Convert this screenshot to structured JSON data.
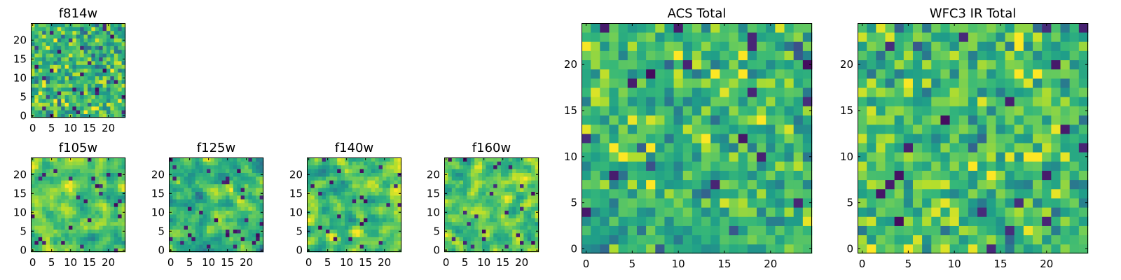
{
  "figure": {
    "colormap": "viridis",
    "cmap_low": "#440154",
    "cmap_high": "#fde725"
  },
  "chart_data": [
    {
      "type": "heatmap",
      "title": "f814w",
      "size": 25,
      "xticks": [
        "0",
        "5",
        "10",
        "15",
        "20"
      ],
      "yticks": [
        "0",
        "5",
        "10",
        "15",
        "20"
      ],
      "xlim": [
        0,
        24
      ],
      "ylim": [
        0,
        24
      ],
      "grid": false,
      "seed": 17,
      "smooth": 0,
      "mean": 0.66,
      "spread": 0.15
    },
    {
      "type": "heatmap",
      "title": "f105w",
      "size": 25,
      "xticks": [
        "0",
        "5",
        "10",
        "15",
        "20"
      ],
      "yticks": [
        "0",
        "5",
        "10",
        "15",
        "20"
      ],
      "xlim": [
        0,
        24
      ],
      "ylim": [
        0,
        24
      ],
      "grid": false,
      "seed": 41,
      "smooth": 1,
      "mean": 0.74,
      "spread": 0.15
    },
    {
      "type": "heatmap",
      "title": "f125w",
      "size": 25,
      "xticks": [
        "0",
        "5",
        "10",
        "15",
        "20"
      ],
      "yticks": [
        "0",
        "5",
        "10",
        "15",
        "20"
      ],
      "xlim": [
        0,
        24
      ],
      "ylim": [
        0,
        24
      ],
      "grid": false,
      "seed": 73,
      "smooth": 1,
      "mean": 0.68,
      "spread": 0.16
    },
    {
      "type": "heatmap",
      "title": "f140w",
      "size": 25,
      "xticks": [
        "0",
        "5",
        "10",
        "15",
        "20"
      ],
      "yticks": [
        "0",
        "5",
        "10",
        "15",
        "20"
      ],
      "xlim": [
        0,
        24
      ],
      "ylim": [
        0,
        24
      ],
      "grid": false,
      "seed": 99,
      "smooth": 1,
      "mean": 0.72,
      "spread": 0.15
    },
    {
      "type": "heatmap",
      "title": "f160w",
      "size": 25,
      "xticks": [
        "0",
        "5",
        "10",
        "15",
        "20"
      ],
      "yticks": [
        "0",
        "5",
        "10",
        "15",
        "20"
      ],
      "xlim": [
        0,
        24
      ],
      "ylim": [
        0,
        24
      ],
      "grid": false,
      "seed": 131,
      "smooth": 1,
      "mean": 0.72,
      "spread": 0.15
    },
    {
      "type": "heatmap",
      "title": "ACS Total",
      "size": 25,
      "xticks": [
        "0",
        "5",
        "10",
        "15",
        "20"
      ],
      "yticks": [
        "0",
        "5",
        "10",
        "15",
        "20"
      ],
      "xlim": [
        0,
        24
      ],
      "ylim": [
        0,
        24
      ],
      "grid": false,
      "seed": 211,
      "smooth": 0,
      "mean": 0.67,
      "spread": 0.14
    },
    {
      "type": "heatmap",
      "title": "WFC3 IR Total",
      "size": 25,
      "xticks": [
        "0",
        "5",
        "10",
        "15",
        "20"
      ],
      "yticks": [
        "0",
        "5",
        "10",
        "15",
        "20"
      ],
      "xlim": [
        0,
        24
      ],
      "ylim": [
        0,
        24
      ],
      "grid": false,
      "seed": 307,
      "smooth": 0,
      "mean": 0.69,
      "spread": 0.14
    }
  ]
}
